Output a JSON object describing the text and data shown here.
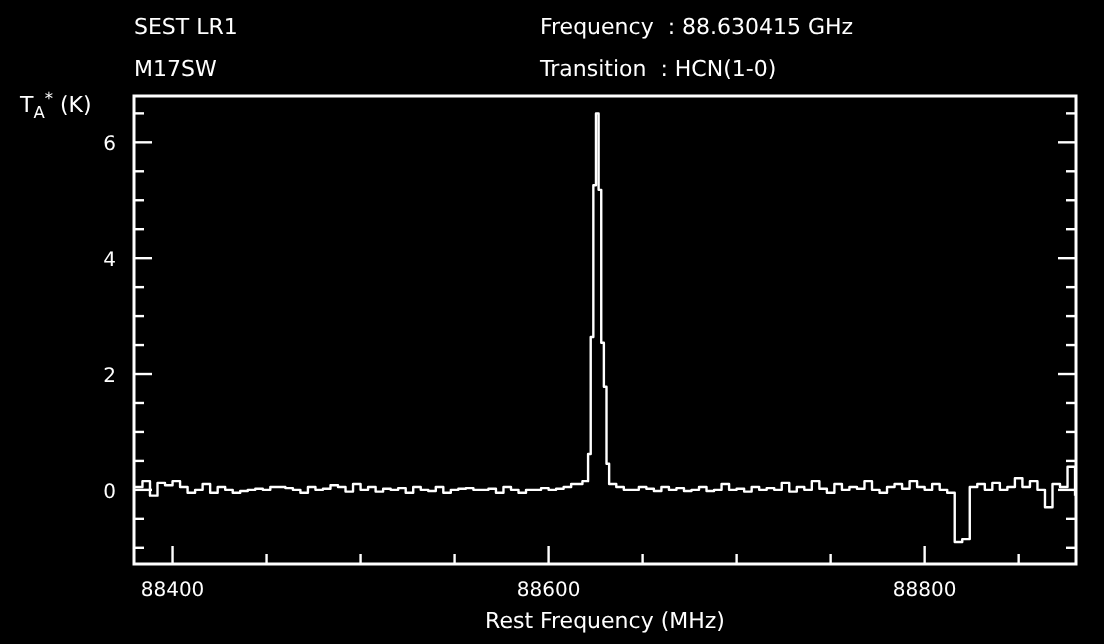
{
  "chart_data": {
    "type": "step",
    "title": "SEST LR1",
    "subtitle": "M17SW",
    "annotations": [
      "Frequency  : 88.630415 GHz",
      "Transition  : HCN(1-0)"
    ],
    "xlabel": "Rest Frequency (MHz)",
    "ylabel": "T$_{A}$$^{*}$ (K)",
    "xlim": [
      88379.5,
      88880.5
    ],
    "ylim": [
      -1.28,
      6.8
    ],
    "xticks": [
      88400,
      {
        "value": 88450,
        "label": null
      },
      {
        "value": 88500,
        "label": null
      },
      {
        "value": 88550,
        "label": null
      },
      88600,
      {
        "value": 88650,
        "label": null
      },
      {
        "value": 88700,
        "label": null
      },
      {
        "value": 88750,
        "label": null
      },
      88800,
      {
        "value": 88850,
        "label": null
      }
    ],
    "yticks": [
      {
        "value": -1,
        "label": null
      },
      {
        "value": -0.5,
        "label": null
      },
      0,
      {
        "value": 0.5,
        "label": null
      },
      {
        "value": 1,
        "label": null
      },
      {
        "value": 1.5,
        "label": null
      },
      2,
      {
        "value": 2.5,
        "label": null
      },
      {
        "value": 3,
        "label": null
      },
      {
        "value": 3.5,
        "label": null
      },
      4,
      {
        "value": 4.5,
        "label": null
      },
      {
        "value": 5,
        "label": null
      },
      {
        "value": 5.5,
        "label": null
      },
      6,
      {
        "value": 6.5,
        "label": null
      }
    ],
    "grid": false,
    "series": [
      {
        "color": "#ffffff",
        "x": [
          88380,
          88384,
          88388,
          88392,
          88396,
          88400,
          88404,
          88408,
          88412,
          88416,
          88420,
          88424,
          88428,
          88432,
          88436,
          88440,
          88444,
          88448,
          88452,
          88456,
          88460,
          88464,
          88468,
          88472,
          88476,
          88480,
          88484,
          88488,
          88492,
          88496,
          88500,
          88504,
          88508,
          88512,
          88516,
          88520,
          88524,
          88528,
          88532,
          88536,
          88540,
          88544,
          88548,
          88552,
          88556,
          88560,
          88564,
          88568,
          88572,
          88576,
          88580,
          88584,
          88588,
          88592,
          88596,
          88600,
          88604,
          88608,
          88612,
          88616,
          88618,
          88621,
          88622.4,
          88623.8,
          88625.2,
          88626.6,
          88628,
          88629.4,
          88630.8,
          88632.2,
          88636,
          88640,
          88644,
          88648,
          88652,
          88656,
          88660,
          88664,
          88668,
          88672,
          88676,
          88680,
          88684,
          88688,
          88692,
          88696,
          88700,
          88704,
          88708,
          88712,
          88716,
          88720,
          88724,
          88728,
          88732,
          88736,
          88740,
          88744,
          88748,
          88752,
          88756,
          88760,
          88764,
          88768,
          88772,
          88776,
          88780,
          88784,
          88788,
          88792,
          88796,
          88800,
          88804,
          88808,
          88812,
          88816,
          88820,
          88824,
          88828,
          88832,
          88836,
          88840,
          88844,
          88848,
          88852,
          88856,
          88860,
          88864,
          88868,
          88872,
          88876,
          88880
        ],
        "values": [
          0.05,
          0.15,
          -0.1,
          0.12,
          0.08,
          0.15,
          0.05,
          -0.05,
          0.0,
          0.1,
          -0.05,
          0.05,
          0.0,
          -0.05,
          -0.02,
          0.0,
          0.02,
          0.0,
          0.05,
          0.05,
          0.03,
          0.0,
          -0.05,
          0.05,
          0.0,
          0.02,
          0.08,
          0.05,
          -0.03,
          0.1,
          0.0,
          0.05,
          -0.03,
          0.02,
          0.0,
          0.03,
          -0.05,
          0.05,
          0.0,
          -0.02,
          0.05,
          -0.05,
          0.0,
          0.02,
          0.03,
          0.0,
          0.0,
          0.02,
          -0.05,
          0.05,
          0.0,
          -0.05,
          0.0,
          0.0,
          0.03,
          0.0,
          0.02,
          0.05,
          0.1,
          0.1,
          0.15,
          0.62,
          2.64,
          5.26,
          6.5,
          5.18,
          2.54,
          1.78,
          0.45,
          0.1,
          0.05,
          0.0,
          0.0,
          0.05,
          0.02,
          -0.02,
          0.05,
          0.0,
          0.03,
          -0.02,
          0.0,
          0.05,
          -0.02,
          0.0,
          0.1,
          0.0,
          0.02,
          -0.03,
          0.05,
          0.0,
          0.03,
          0.0,
          0.12,
          -0.03,
          0.05,
          0.0,
          0.15,
          0.02,
          -0.05,
          0.1,
          0.0,
          0.05,
          0.02,
          0.15,
          0.0,
          -0.05,
          0.05,
          0.1,
          0.02,
          0.15,
          0.05,
          0.0,
          0.1,
          0.0,
          -0.05,
          -0.9,
          -0.85,
          0.05,
          0.1,
          0.0,
          0.12,
          0.0,
          0.05,
          0.2,
          0.05,
          0.15,
          0.0,
          -0.3,
          0.1,
          0.05,
          0.4,
          -0.1
        ]
      }
    ]
  }
}
